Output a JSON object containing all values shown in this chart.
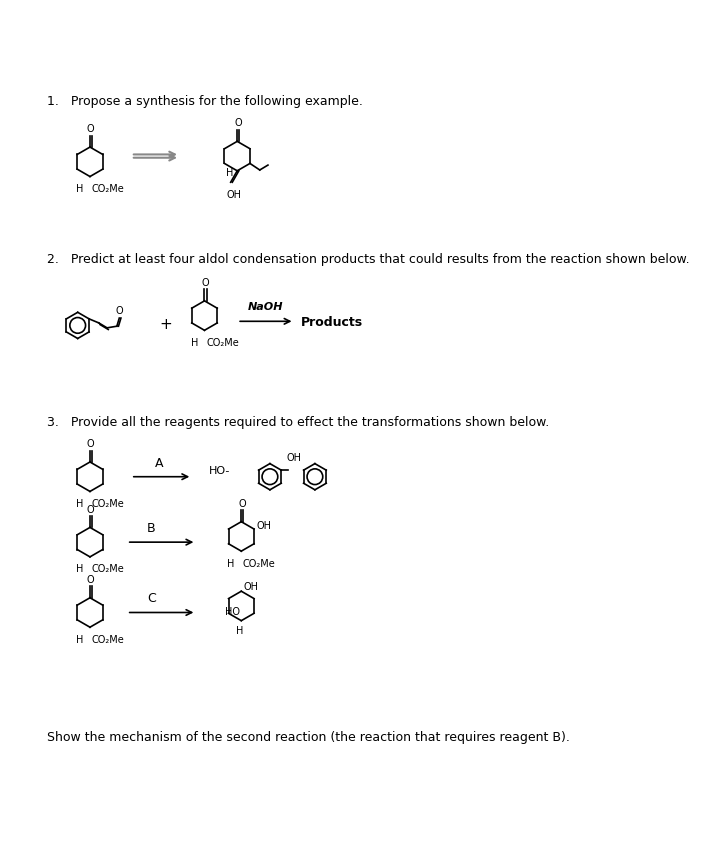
{
  "background": "#ffffff",
  "q1_text": "1.   Propose a synthesis for the following example.",
  "q2_text": "2.   Predict at least four aldol condensation products that could results from the reaction shown below.",
  "q3_text": "3.   Provide all the reagents required to effect the transformations shown below.",
  "q4_text": "Show the mechanism of the second reaction (the reaction that requires reagent B).",
  "naoh_label": "NaOH",
  "products_label": "Products",
  "reagent_a": "A",
  "reagent_b": "B",
  "reagent_c": "C",
  "co2me": "CO₂Me",
  "oh_label": "OH",
  "ho_label": "HO",
  "h_label": "H"
}
